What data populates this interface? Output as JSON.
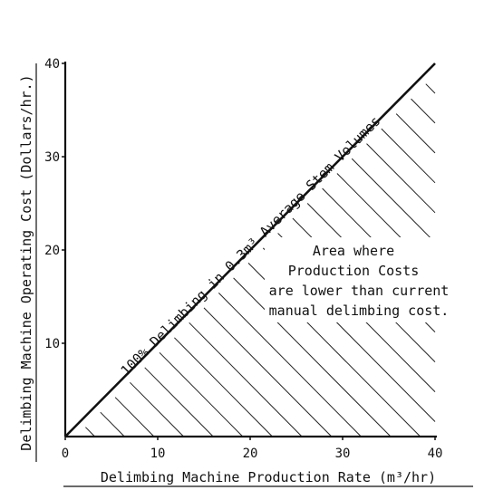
{
  "chart_data": {
    "type": "line",
    "title": "",
    "xlabel": "Delimbing Machine Production Rate (m³/hr)",
    "ylabel": "Delimbing Machine Operating Cost (Dollars/hr.)",
    "xlim": [
      0,
      40
    ],
    "ylim": [
      0,
      40
    ],
    "x_ticks": [
      "0",
      "10",
      "20",
      "30",
      "40"
    ],
    "y_ticks": [
      "10",
      "20",
      "30",
      "40"
    ],
    "grid": false,
    "series": [
      {
        "name": "",
        "x": [
          0,
          40
        ],
        "y": [
          0,
          40
        ]
      }
    ],
    "line_label": "100% Delimbing in 0.3m³ Average Stem Volumes",
    "region_label": [
      "Area where",
      "Production Costs",
      "are lower than current",
      "manual delimbing cost."
    ],
    "shaded_region": "below-line"
  }
}
